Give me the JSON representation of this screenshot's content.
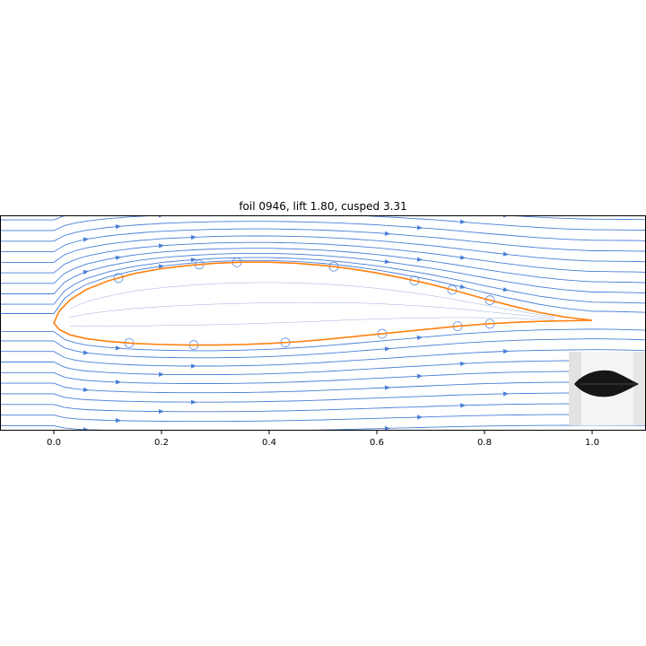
{
  "chart_data": {
    "type": "line",
    "title": "foil 0946, lift  1.80, cusped  3.31",
    "xlabel": "",
    "ylabel": "",
    "xlim": [
      -0.1,
      1.1
    ],
    "ylim": [
      -0.2,
      0.2
    ],
    "x_ticks": [
      "0.0",
      "0.2",
      "0.4",
      "0.6",
      "0.8",
      "1.0"
    ],
    "x_tick_values": [
      0.0,
      0.2,
      0.4,
      0.6,
      0.8,
      1.0
    ],
    "grid": false,
    "legend": "none",
    "series": [
      {
        "kind": "airfoil-outline",
        "upper": [
          [
            0.0,
            0.0
          ],
          [
            0.01,
            0.022
          ],
          [
            0.03,
            0.043
          ],
          [
            0.06,
            0.062
          ],
          [
            0.1,
            0.078
          ],
          [
            0.15,
            0.092
          ],
          [
            0.2,
            0.101
          ],
          [
            0.25,
            0.107
          ],
          [
            0.3,
            0.111
          ],
          [
            0.35,
            0.113
          ],
          [
            0.4,
            0.113
          ],
          [
            0.45,
            0.111
          ],
          [
            0.5,
            0.107
          ],
          [
            0.55,
            0.101
          ],
          [
            0.6,
            0.093
          ],
          [
            0.65,
            0.083
          ],
          [
            0.7,
            0.072
          ],
          [
            0.75,
            0.059
          ],
          [
            0.8,
            0.045
          ],
          [
            0.85,
            0.032
          ],
          [
            0.9,
            0.02
          ],
          [
            0.95,
            0.011
          ],
          [
            1.0,
            0.005
          ]
        ],
        "lower": [
          [
            0.0,
            0.0
          ],
          [
            0.01,
            -0.012
          ],
          [
            0.03,
            -0.022
          ],
          [
            0.06,
            -0.029
          ],
          [
            0.1,
            -0.034
          ],
          [
            0.15,
            -0.038
          ],
          [
            0.2,
            -0.04
          ],
          [
            0.25,
            -0.041
          ],
          [
            0.3,
            -0.041
          ],
          [
            0.35,
            -0.04
          ],
          [
            0.4,
            -0.038
          ],
          [
            0.45,
            -0.035
          ],
          [
            0.5,
            -0.031
          ],
          [
            0.55,
            -0.026
          ],
          [
            0.6,
            -0.021
          ],
          [
            0.65,
            -0.016
          ],
          [
            0.7,
            -0.011
          ],
          [
            0.75,
            -0.006
          ],
          [
            0.8,
            -0.002
          ],
          [
            0.85,
            0.001
          ],
          [
            0.9,
            0.003
          ],
          [
            0.95,
            0.004
          ],
          [
            1.0,
            0.005
          ]
        ]
      }
    ],
    "streamline_start_y": [
      -0.19,
      -0.17,
      -0.15,
      -0.13,
      -0.11,
      -0.09,
      -0.07,
      -0.05,
      -0.03,
      -0.012,
      0.012,
      0.03,
      0.05,
      0.07,
      0.09,
      0.11,
      0.13,
      0.15,
      0.17,
      0.19
    ],
    "colors": {
      "airfoil": "#ff7f0e",
      "streamlines": "#4a7fd8",
      "inner_flow": "#9ab0d8",
      "axis": "#000000"
    }
  }
}
